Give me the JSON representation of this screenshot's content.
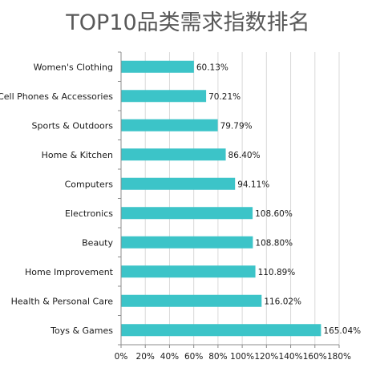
{
  "chart_data": {
    "type": "bar",
    "orientation": "horizontal",
    "title": "TOP10品类需求指数排名",
    "categories": [
      "Women's Clothing",
      "Cell Phones & Accessories",
      "Sports & Outdoors",
      "Home & Kitchen",
      "Computers",
      "Electronics",
      "Beauty",
      "Home Improvement",
      "Health & Personal Care",
      "Toys & Games"
    ],
    "values": [
      60.13,
      70.21,
      79.79,
      86.4,
      94.11,
      108.6,
      108.8,
      110.89,
      116.02,
      165.04
    ],
    "value_labels": [
      "60.13%",
      "70.21%",
      "79.79%",
      "86.40%",
      "94.11%",
      "108.60%",
      "108.80%",
      "110.89%",
      "116.02%",
      "165.04%"
    ],
    "xlim": [
      0,
      180
    ],
    "x_ticks": [
      0,
      20,
      40,
      60,
      80,
      100,
      120,
      140,
      160,
      180
    ],
    "x_tick_labels": [
      "0%",
      "20%",
      "40%",
      "60%",
      "80%",
      "100%",
      "120%",
      "140%",
      "160%",
      "180%"
    ],
    "xlabel": "",
    "ylabel": "",
    "grid": "vertical",
    "legend": "none",
    "bar_color": "#3CC4C8",
    "grid_color": "#d9d9d9",
    "axis_color": "#8c8c8c"
  }
}
